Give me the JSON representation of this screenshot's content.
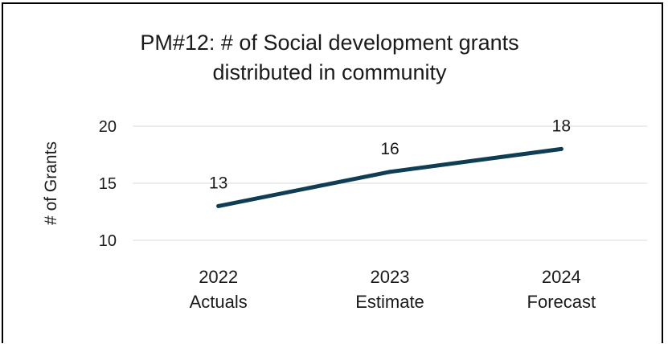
{
  "colors": {
    "line": "#0f3d54",
    "grid": "#d9d9d9",
    "border": "#000000"
  },
  "chart_data": {
    "type": "line",
    "title_line1": "PM#12: # of Social development grants",
    "title_line2": "distributed in community",
    "ylabel": "# of Grants",
    "xlabel": "",
    "ylim": [
      10,
      20
    ],
    "yticks": [
      "20",
      "15",
      "10"
    ],
    "categories": [
      {
        "year": "2022",
        "label": "Actuals"
      },
      {
        "year": "2023",
        "label": "Estimate"
      },
      {
        "year": "2024",
        "label": "Forecast"
      }
    ],
    "values": [
      13,
      16,
      18
    ],
    "data_labels": [
      "13",
      "16",
      "18"
    ],
    "grid": true,
    "legend": "none"
  }
}
